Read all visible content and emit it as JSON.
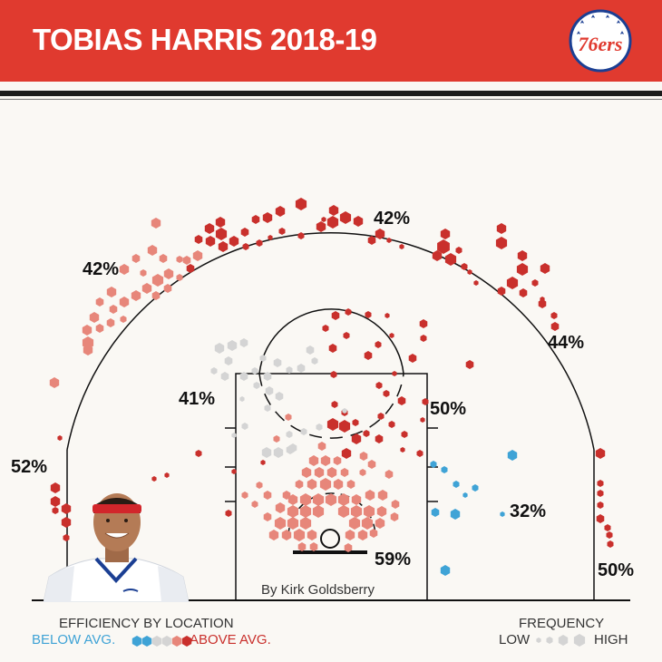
{
  "title": "TOBIAS HARRIS 2018-19",
  "logo_text": "76ers",
  "credit": "By Kirk Goldsberry",
  "colors": {
    "header": "#e03a2f",
    "above_avg": "#c9302c",
    "above_light": "#e7867a",
    "average": "#d4d4d4",
    "below_avg": "#3fa3d6"
  },
  "legend": {
    "efficiency_label": "EFFICIENCY BY LOCATION",
    "below_label": "BELOW AVG.",
    "above_label": "ABOVE AVG.",
    "frequency_label": "FREQUENCY",
    "low_label": "LOW",
    "high_label": "HIGH"
  },
  "chart_data": {
    "type": "heatmap",
    "title": "TOBIAS HARRIS 2018-19",
    "description_of_encoding": "hexagon size = shot frequency; hexagon color = efficiency vs league average",
    "zones": [
      {
        "zone": "left corner three",
        "fg_pct": "52%",
        "efficiency": "above"
      },
      {
        "zone": "left wing three",
        "fg_pct": "42%",
        "efficiency": "above"
      },
      {
        "zone": "top of the key three",
        "fg_pct": "42%",
        "efficiency": "above"
      },
      {
        "zone": "right wing three",
        "fg_pct": "44%",
        "efficiency": "above"
      },
      {
        "zone": "right corner three",
        "fg_pct": "50%",
        "efficiency": "above"
      },
      {
        "zone": "left midrange",
        "fg_pct": "41%",
        "efficiency": "average"
      },
      {
        "zone": "right elbow midrange",
        "fg_pct": "50%",
        "efficiency": "above"
      },
      {
        "zone": "right baseline midrange",
        "fg_pct": "32%",
        "efficiency": "below"
      },
      {
        "zone": "restricted area",
        "fg_pct": "59%",
        "efficiency": "above"
      }
    ]
  }
}
